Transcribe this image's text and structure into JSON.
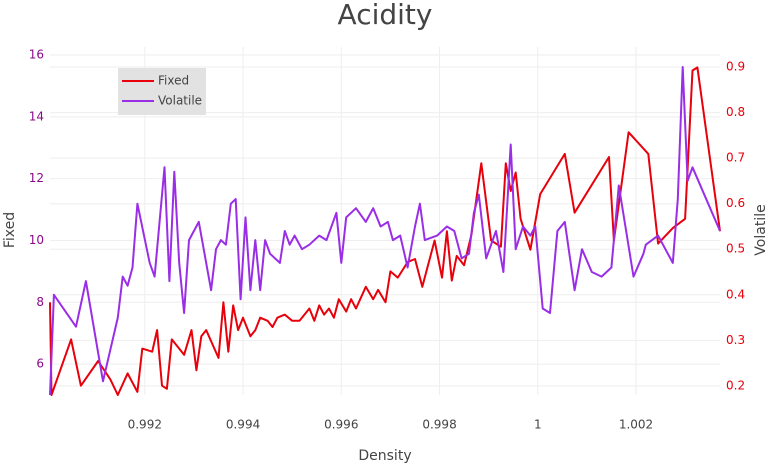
{
  "chart_data": {
    "type": "line",
    "title": "Acidity",
    "x_label": "Density",
    "y_label": "Fixed",
    "y2_label": "Volatile",
    "xlim": [
      0.99007,
      1.00371
    ],
    "xticks": [
      0.992,
      0.994,
      0.996,
      0.998,
      1,
      1.002
    ],
    "ylim": [
      5.0,
      16.26
    ],
    "yticks": [
      6,
      8,
      10,
      12,
      14,
      16
    ],
    "y2lim": [
      0.18,
      0.944
    ],
    "y2ticks": [
      0.2,
      0.3,
      0.4,
      0.5,
      0.6,
      0.7,
      0.8,
      0.9
    ],
    "grid": true,
    "legend_position": "top-left",
    "series": [
      {
        "name": "Fixed",
        "color": "#e8000b",
        "x": [
          0.99007,
          0.9901,
          0.9905,
          0.9907,
          0.99105,
          0.9913,
          0.99145,
          0.99165,
          0.99185,
          0.99195,
          0.99215,
          0.99225,
          0.99235,
          0.99245,
          0.99255,
          0.9928,
          0.99295,
          0.99305,
          0.99315,
          0.99325,
          0.9935,
          0.9936,
          0.9937,
          0.9938,
          0.9939,
          0.994,
          0.99415,
          0.99425,
          0.99435,
          0.9945,
          0.9946,
          0.9947,
          0.99485,
          0.995,
          0.99515,
          0.99535,
          0.99545,
          0.99555,
          0.99565,
          0.99575,
          0.99585,
          0.99595,
          0.9961,
          0.9962,
          0.9963,
          0.9965,
          0.99665,
          0.99675,
          0.9969,
          0.997,
          0.99715,
          0.99735,
          0.9975,
          0.99765,
          0.9979,
          0.99805,
          0.99815,
          0.99825,
          0.99835,
          0.9985,
          0.99865,
          0.99885,
          0.99905,
          0.99925,
          0.99935,
          0.99945,
          0.99955,
          0.99965,
          0.99985,
          1.00005,
          1.00055,
          1.00075,
          1.00145,
          1.00155,
          1.00185,
          1.00225,
          1.00245,
          1.00275,
          1.003,
          1.00315,
          1.00325,
          1.00371
        ],
        "values": [
          8.0,
          5.0,
          6.8,
          5.3,
          6.1,
          5.5,
          5.0,
          5.7,
          5.1,
          6.5,
          6.4,
          7.1,
          5.3,
          5.2,
          6.8,
          6.3,
          7.1,
          5.8,
          6.9,
          7.1,
          6.2,
          8.0,
          6.4,
          7.9,
          7.1,
          7.5,
          6.9,
          7.1,
          7.5,
          7.4,
          7.2,
          7.5,
          7.6,
          7.4,
          7.4,
          7.8,
          7.4,
          7.9,
          7.6,
          7.8,
          7.5,
          8.1,
          7.7,
          8.1,
          7.8,
          8.5,
          8.1,
          8.4,
          8.0,
          9.0,
          8.8,
          9.3,
          9.4,
          8.5,
          10.0,
          8.8,
          10.3,
          8.7,
          9.5,
          9.2,
          10.2,
          12.5,
          10.0,
          9.8,
          12.5,
          11.6,
          12.2,
          10.7,
          9.7,
          11.5,
          12.8,
          10.9,
          12.7,
          10.0,
          13.5,
          12.8,
          9.9,
          10.4,
          10.7,
          15.5,
          15.6,
          10.3
        ]
      },
      {
        "name": "Volatile",
        "color": "#9a2ee6",
        "axis": "y2",
        "x": [
          0.99007,
          0.99015,
          0.9906,
          0.9908,
          0.99115,
          0.99145,
          0.99155,
          0.99165,
          0.99175,
          0.99185,
          0.9921,
          0.9922,
          0.9924,
          0.9925,
          0.9926,
          0.9927,
          0.9928,
          0.9929,
          0.9931,
          0.99335,
          0.99345,
          0.99355,
          0.99365,
          0.99375,
          0.99385,
          0.99395,
          0.99405,
          0.99415,
          0.99425,
          0.99435,
          0.99445,
          0.99455,
          0.99475,
          0.99485,
          0.99495,
          0.99505,
          0.9952,
          0.99535,
          0.99555,
          0.9957,
          0.9959,
          0.996,
          0.9961,
          0.9962,
          0.9963,
          0.9965,
          0.99665,
          0.9968,
          0.99695,
          0.99705,
          0.9972,
          0.99735,
          0.9975,
          0.9976,
          0.9977,
          0.99795,
          0.99815,
          0.9983,
          0.99845,
          0.9986,
          0.9987,
          0.9988,
          0.99895,
          0.99915,
          0.9993,
          0.99945,
          0.99955,
          0.9997,
          0.99985,
          0.99995,
          1.0001,
          1.00025,
          1.0004,
          1.00055,
          1.00075,
          1.0009,
          1.0011,
          1.0013,
          1.0015,
          1.00165,
          1.00195,
          1.00215,
          1.0022,
          1.00245,
          1.00265,
          1.00275,
          1.00285,
          1.00295,
          1.00305,
          1.00315,
          1.00371
        ],
        "values": [
          0.18,
          0.4,
          0.33,
          0.43,
          0.21,
          0.35,
          0.44,
          0.42,
          0.46,
          0.6,
          0.47,
          0.44,
          0.68,
          0.43,
          0.67,
          0.47,
          0.36,
          0.52,
          0.56,
          0.41,
          0.5,
          0.52,
          0.51,
          0.6,
          0.61,
          0.39,
          0.57,
          0.41,
          0.52,
          0.41,
          0.52,
          0.49,
          0.47,
          0.54,
          0.51,
          0.53,
          0.5,
          0.51,
          0.53,
          0.52,
          0.58,
          0.47,
          0.57,
          0.58,
          0.59,
          0.56,
          0.59,
          0.55,
          0.56,
          0.52,
          0.53,
          0.46,
          0.55,
          0.6,
          0.52,
          0.53,
          0.55,
          0.54,
          0.48,
          0.49,
          0.58,
          0.62,
          0.48,
          0.54,
          0.45,
          0.73,
          0.5,
          0.55,
          0.53,
          0.55,
          0.37,
          0.36,
          0.54,
          0.56,
          0.41,
          0.5,
          0.45,
          0.44,
          0.46,
          0.64,
          0.44,
          0.49,
          0.51,
          0.53,
          0.49,
          0.47,
          0.61,
          0.9,
          0.65,
          0.68,
          0.54
        ]
      }
    ]
  }
}
